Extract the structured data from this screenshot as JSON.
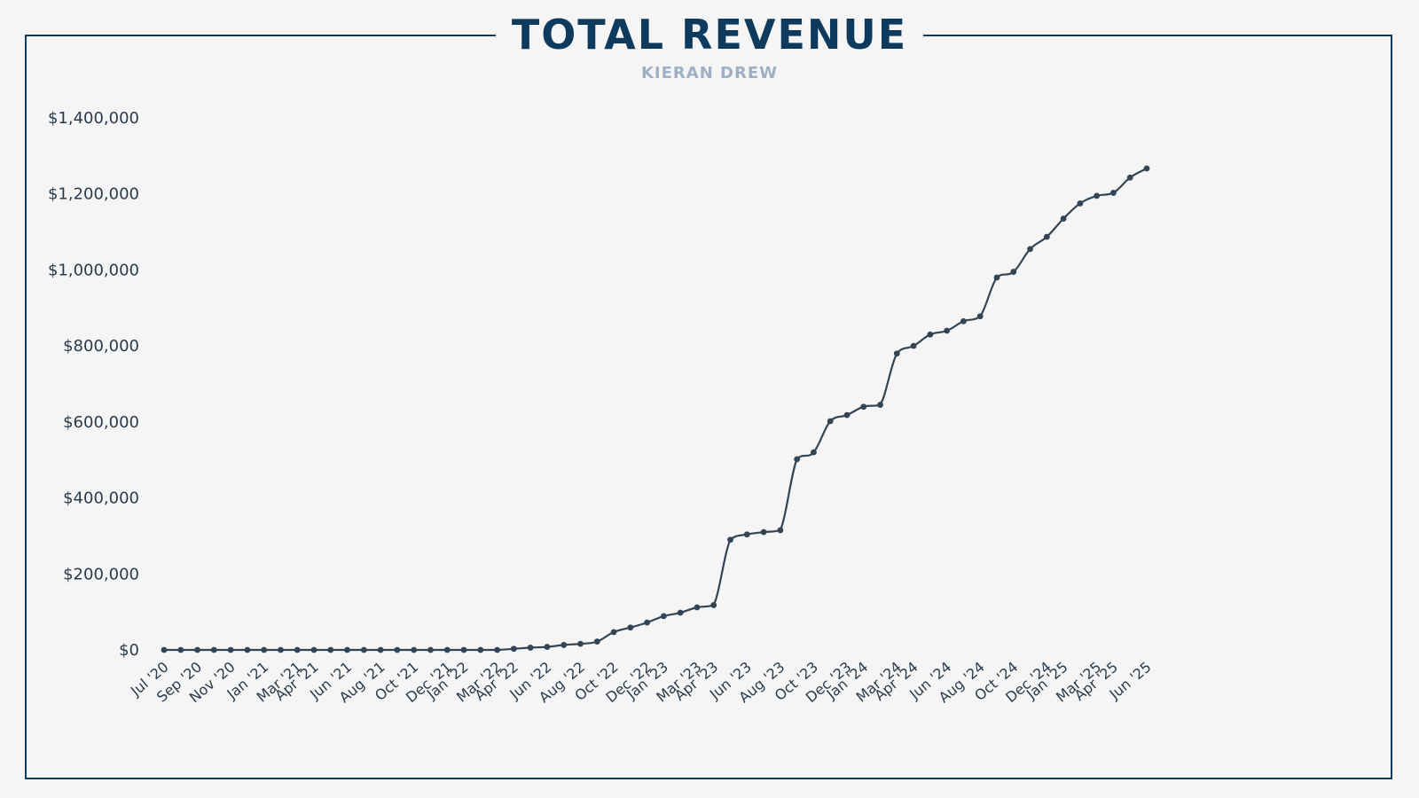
{
  "header": {
    "title": "TOTAL REVENUE",
    "subtitle": "KIERAN DREW"
  },
  "colors": {
    "frame": "#0e3a5e",
    "title": "#0e3a5e",
    "subtitle": "#9fb0c6",
    "line": "#334455",
    "background": "#f5f5f5"
  },
  "chart_data": {
    "type": "line",
    "title": "TOTAL REVENUE",
    "subtitle": "KIERAN DREW",
    "xlabel": "",
    "ylabel": "",
    "ylim": [
      0,
      1400000
    ],
    "y_ticks": [
      0,
      200000,
      400000,
      600000,
      800000,
      1000000,
      1200000,
      1400000
    ],
    "y_tick_labels": [
      "$0",
      "$200,000",
      "$400,000",
      "$600,000",
      "$800,000",
      "$1,000,000",
      "$1,200,000",
      "$1,400,000"
    ],
    "grid": false,
    "legend": "none",
    "x_tick_labels": [
      {
        "index": 0,
        "label": "Jul '20"
      },
      {
        "index": 2,
        "label": "Sep '20"
      },
      {
        "index": 4,
        "label": "Nov '20"
      },
      {
        "index": 6,
        "label": "Jan '21"
      },
      {
        "index": 8,
        "label": "Mar '21"
      },
      {
        "index": 9,
        "label": "Apr '21"
      },
      {
        "index": 11,
        "label": "Jun '21"
      },
      {
        "index": 13,
        "label": "Aug '21"
      },
      {
        "index": 15,
        "label": "Oct '21"
      },
      {
        "index": 17,
        "label": "Dec '21"
      },
      {
        "index": 18,
        "label": "Jan '22"
      },
      {
        "index": 20,
        "label": "Mar '22"
      },
      {
        "index": 21,
        "label": "Apr '22"
      },
      {
        "index": 23,
        "label": "Jun '22"
      },
      {
        "index": 25,
        "label": "Aug '22"
      },
      {
        "index": 27,
        "label": "Oct '22"
      },
      {
        "index": 29,
        "label": "Dec '22"
      },
      {
        "index": 30,
        "label": "Jan '23"
      },
      {
        "index": 32,
        "label": "Mar '23"
      },
      {
        "index": 33,
        "label": "Apr '23"
      },
      {
        "index": 35,
        "label": "Jun '23"
      },
      {
        "index": 37,
        "label": "Aug '23"
      },
      {
        "index": 39,
        "label": "Oct '23"
      },
      {
        "index": 41,
        "label": "Dec '23"
      },
      {
        "index": 42,
        "label": "Jan '24"
      },
      {
        "index": 44,
        "label": "Mar '24"
      },
      {
        "index": 45,
        "label": "Apr '24"
      },
      {
        "index": 47,
        "label": "Jun '24"
      },
      {
        "index": 49,
        "label": "Aug '24"
      },
      {
        "index": 51,
        "label": "Oct '24"
      },
      {
        "index": 53,
        "label": "Dec '24"
      },
      {
        "index": 54,
        "label": "Jan '25"
      },
      {
        "index": 56,
        "label": "Mar '25"
      },
      {
        "index": 57,
        "label": "Apr '25"
      },
      {
        "index": 59,
        "label": "Jun '25"
      }
    ],
    "series": [
      {
        "name": "",
        "values": [
          0,
          0,
          0,
          0,
          0,
          0,
          0,
          0,
          0,
          0,
          0,
          0,
          0,
          0,
          0,
          0,
          0,
          0,
          0,
          0,
          0,
          3000,
          6000,
          8000,
          13000,
          16000,
          22000,
          47000,
          59000,
          72000,
          89000,
          98000,
          112000,
          118000,
          290000,
          304000,
          310000,
          315000,
          502000,
          520000,
          602000,
          618000,
          640000,
          645000,
          780000,
          800000,
          830000,
          840000,
          865000,
          878000,
          980000,
          995000,
          1055000,
          1087000,
          1135000,
          1175000,
          1195000,
          1203000,
          1243000,
          1267000
        ]
      }
    ]
  }
}
